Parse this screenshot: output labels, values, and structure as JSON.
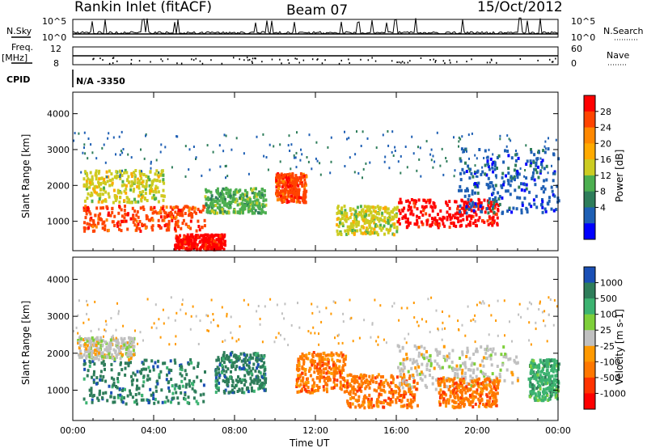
{
  "header": {
    "station": "Rankin Inlet (fitACF)",
    "beam": "Beam 07",
    "date": "15/Oct/2012"
  },
  "strip": {
    "nsky_label": "N.Sky",
    "nsky_ticks": [
      "10^5",
      "10^0"
    ],
    "nsearch_label": "N.Search",
    "nsearch_ticks": [
      "10^5",
      "10^0"
    ],
    "freq_label": "Freq.",
    "freq_unit": "[MHz]",
    "freq_ticks": [
      "12",
      "8"
    ],
    "nave_label": "Nave",
    "nave_ticks": [
      "60",
      "0"
    ],
    "cpid_label": "CPID",
    "cpid_value": "N/A -3350"
  },
  "colorbars": {
    "power": {
      "label": "Power [dB]",
      "ticks": [
        "28",
        "24",
        "20",
        "16",
        "12",
        "8",
        "4"
      ],
      "colors": [
        "#ff0000",
        "#ff4400",
        "#ff8800",
        "#ffaa00",
        "#cccc22",
        "#4caf50",
        "#2e7d5a",
        "#1e5fb4",
        "#0000ff"
      ]
    },
    "velocity": {
      "label": "Velocity [m s-1]",
      "ticks": [
        "1000",
        "500",
        "100",
        "25",
        "-25",
        "-100",
        "-500",
        "-1000"
      ],
      "colors": [
        "#1a4fb5",
        "#2e7d5a",
        "#3cb371",
        "#7ecf3a",
        "#c0c0c0",
        "#ff9900",
        "#ff7700",
        "#ff3300",
        "#ff0000"
      ]
    }
  },
  "chart_data": [
    {
      "type": "heatmap",
      "panel": "power",
      "ylabel": "Slant Range [km]",
      "ylim": [
        180,
        4600
      ],
      "yticks": [
        "1000",
        "2000",
        "3000",
        "4000"
      ],
      "xlim": [
        "00:00",
        "24:00"
      ],
      "xticks": [
        "00:00",
        "04:00",
        "08:00",
        "12:00",
        "16:00",
        "20:00",
        "00:00"
      ],
      "xlabel": "",
      "value_units": "dB",
      "scatter_bands": [
        {
          "t0": 0.5,
          "t1": 6.5,
          "r0": 700,
          "r1": 1400,
          "value": 24
        },
        {
          "t0": 0.5,
          "t1": 4.5,
          "r0": 1500,
          "r1": 2400,
          "value": 16
        },
        {
          "t0": 5.0,
          "t1": 7.5,
          "r0": 180,
          "r1": 600,
          "value": 28
        },
        {
          "t0": 6.5,
          "t1": 9.5,
          "r0": 1200,
          "r1": 1900,
          "value": 12
        },
        {
          "t0": 10.0,
          "t1": 11.5,
          "r0": 1500,
          "r1": 2300,
          "value": 24
        },
        {
          "t0": 13.0,
          "t1": 16.0,
          "r0": 600,
          "r1": 1400,
          "value": 16
        },
        {
          "t0": 16.0,
          "t1": 21.0,
          "r0": 800,
          "r1": 1600,
          "value": 28
        },
        {
          "t0": 19.0,
          "t1": 24.0,
          "r0": 1200,
          "r1": 3000,
          "value": 8
        }
      ]
    },
    {
      "type": "heatmap",
      "panel": "velocity",
      "ylabel": "Slant Range [km]",
      "ylim": [
        180,
        4600
      ],
      "yticks": [
        "1000",
        "2000",
        "3000",
        "4000"
      ],
      "xlim": [
        "00:00",
        "24:00"
      ],
      "xticks": [
        "00:00",
        "04:00",
        "08:00",
        "12:00",
        "16:00",
        "20:00",
        "00:00"
      ],
      "xlabel": "Time UT",
      "value_units": "m s-1",
      "scatter_bands": [
        {
          "t0": 0.5,
          "t1": 6.5,
          "r0": 600,
          "r1": 1800,
          "value": 300
        },
        {
          "t0": 0.2,
          "t1": 3.0,
          "r0": 1800,
          "r1": 2400,
          "value": 0
        },
        {
          "t0": 7.0,
          "t1": 9.5,
          "r0": 900,
          "r1": 2000,
          "value": 300
        },
        {
          "t0": 11.0,
          "t1": 13.5,
          "r0": 900,
          "r1": 2000,
          "value": -200
        },
        {
          "t0": 13.5,
          "t1": 17.0,
          "r0": 500,
          "r1": 1400,
          "value": -100
        },
        {
          "t0": 16.0,
          "t1": 22.0,
          "r0": 1000,
          "r1": 2200,
          "value": 0
        },
        {
          "t0": 18.0,
          "t1": 21.0,
          "r0": 500,
          "r1": 1300,
          "value": -150
        },
        {
          "t0": 22.5,
          "t1": 24.0,
          "r0": 700,
          "r1": 1800,
          "value": 150
        }
      ]
    }
  ]
}
